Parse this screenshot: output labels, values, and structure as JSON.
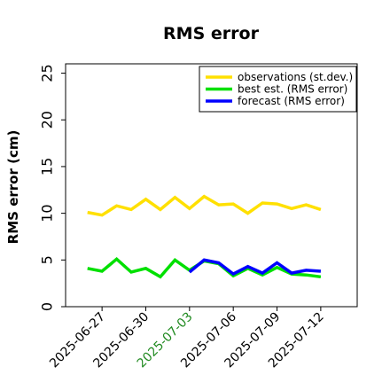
{
  "chart_data": {
    "type": "line",
    "title": "RMS error",
    "ylabel": "RMS error (cm)",
    "ylim": [
      0,
      26
    ],
    "yticks": [
      0,
      5,
      10,
      15,
      20,
      25
    ],
    "xlim": [
      "2025-06-24T12:00",
      "2025-07-14T12:00"
    ],
    "xticks": [
      {
        "label": "2025-06-27",
        "x": "2025-06-27",
        "color": "#000000"
      },
      {
        "label": "2025-06-30",
        "x": "2025-06-30",
        "color": "#000000"
      },
      {
        "label": "2025-07-03",
        "x": "2025-07-03",
        "color": "#228B22"
      },
      {
        "label": "2025-07-06",
        "x": "2025-07-06",
        "color": "#000000"
      },
      {
        "label": "2025-07-09",
        "x": "2025-07-09",
        "color": "#000000"
      },
      {
        "label": "2025-07-12",
        "x": "2025-07-12",
        "color": "#000000"
      }
    ],
    "legend_position": "top-right",
    "grid": false,
    "series": [
      {
        "name": "observations (st.dev.)",
        "color": "#FFE000",
        "x": [
          "2025-06-26",
          "2025-06-27",
          "2025-06-28",
          "2025-06-29",
          "2025-06-30",
          "2025-07-01",
          "2025-07-02",
          "2025-07-03",
          "2025-07-04",
          "2025-07-05",
          "2025-07-06",
          "2025-07-07",
          "2025-07-08",
          "2025-07-09",
          "2025-07-10",
          "2025-07-11",
          "2025-07-12"
        ],
        "values": [
          10.1,
          9.8,
          10.8,
          10.4,
          11.5,
          10.4,
          11.7,
          10.5,
          11.8,
          10.9,
          11.0,
          10.0,
          11.1,
          11.0,
          10.5,
          10.9,
          10.4
        ]
      },
      {
        "name": "best est. (RMS error)",
        "color": "#00E000",
        "x": [
          "2025-06-26",
          "2025-06-27",
          "2025-06-28",
          "2025-06-29",
          "2025-06-30",
          "2025-07-01",
          "2025-07-02",
          "2025-07-03",
          "2025-07-04",
          "2025-07-05",
          "2025-07-06",
          "2025-07-07",
          "2025-07-08",
          "2025-07-09",
          "2025-07-10",
          "2025-07-11",
          "2025-07-12"
        ],
        "values": [
          4.1,
          3.8,
          5.1,
          3.7,
          4.1,
          3.2,
          5.0,
          3.9,
          4.9,
          4.6,
          3.3,
          4.1,
          3.4,
          4.2,
          3.5,
          3.4,
          3.2
        ]
      },
      {
        "name": "forecast (RMS error)",
        "color": "#0000FF",
        "x": [
          "2025-07-03",
          "2025-07-04",
          "2025-07-05",
          "2025-07-06",
          "2025-07-07",
          "2025-07-08",
          "2025-07-09",
          "2025-07-10",
          "2025-07-11",
          "2025-07-12"
        ],
        "values": [
          3.7,
          5.0,
          4.7,
          3.5,
          4.3,
          3.6,
          4.7,
          3.6,
          3.9,
          3.8
        ]
      }
    ]
  }
}
